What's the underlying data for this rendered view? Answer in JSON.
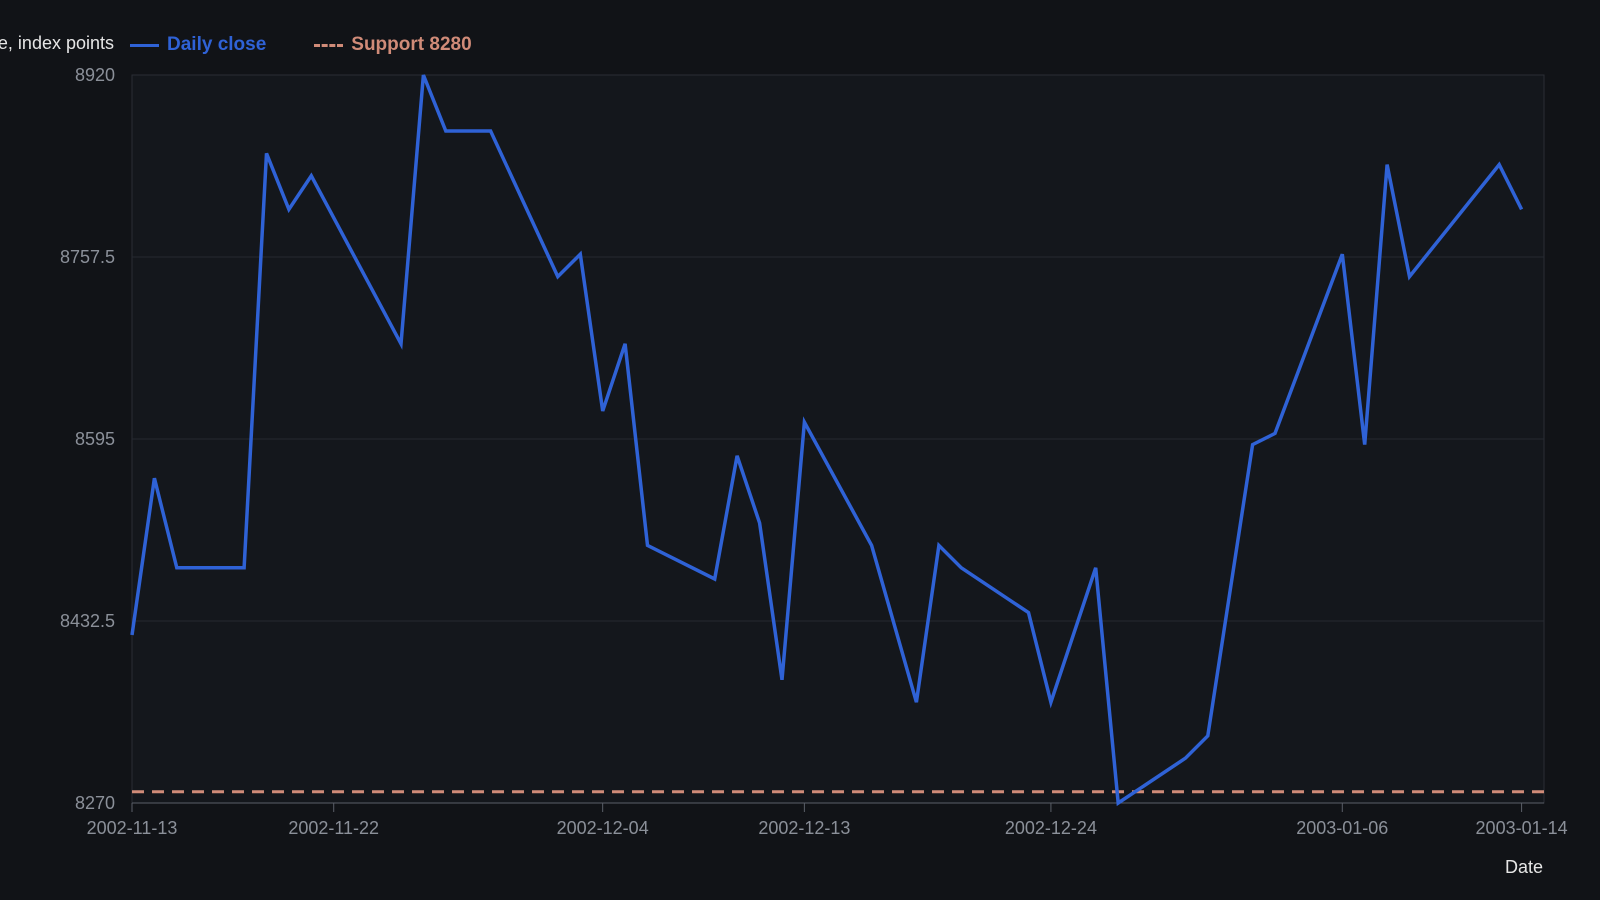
{
  "chart_data": {
    "type": "line",
    "xlabel": "Date",
    "ylabel": "Close, index points",
    "ylim": [
      8270,
      8920
    ],
    "xlim": [
      "2002-11-13",
      "2003-01-15"
    ],
    "y_ticks": [
      "8270",
      "8432.5",
      "8595",
      "8757.5",
      "8920"
    ],
    "x_ticks": [
      "2002-11-13",
      "2002-11-22",
      "2002-12-04",
      "2002-12-13",
      "2002-12-24",
      "2003-01-06",
      "2003-01-14"
    ],
    "grid": true,
    "legend_position": "top-left",
    "series": [
      {
        "name": "Daily close",
        "color": "#2f62d6",
        "style": "solid",
        "points": [
          {
            "x": "2002-11-13",
            "y": 8420
          },
          {
            "x": "2002-11-14",
            "y": 8560
          },
          {
            "x": "2002-11-15",
            "y": 8480
          },
          {
            "x": "2002-11-18",
            "y": 8480
          },
          {
            "x": "2002-11-19",
            "y": 8850
          },
          {
            "x": "2002-11-20",
            "y": 8800
          },
          {
            "x": "2002-11-21",
            "y": 8830
          },
          {
            "x": "2002-11-25",
            "y": 8680
          },
          {
            "x": "2002-11-26",
            "y": 8920
          },
          {
            "x": "2002-11-27",
            "y": 8870
          },
          {
            "x": "2002-11-29",
            "y": 8870
          },
          {
            "x": "2002-12-02",
            "y": 8740
          },
          {
            "x": "2002-12-03",
            "y": 8760
          },
          {
            "x": "2002-12-04",
            "y": 8620
          },
          {
            "x": "2002-12-05",
            "y": 8680
          },
          {
            "x": "2002-12-06",
            "y": 8500
          },
          {
            "x": "2002-12-09",
            "y": 8470
          },
          {
            "x": "2002-12-10",
            "y": 8580
          },
          {
            "x": "2002-12-11",
            "y": 8520
          },
          {
            "x": "2002-12-12",
            "y": 8380
          },
          {
            "x": "2002-12-13",
            "y": 8610
          },
          {
            "x": "2002-12-16",
            "y": 8500
          },
          {
            "x": "2002-12-18",
            "y": 8360
          },
          {
            "x": "2002-12-19",
            "y": 8500
          },
          {
            "x": "2002-12-20",
            "y": 8480
          },
          {
            "x": "2002-12-23",
            "y": 8440
          },
          {
            "x": "2002-12-24",
            "y": 8360
          },
          {
            "x": "2002-12-26",
            "y": 8480
          },
          {
            "x": "2002-12-27",
            "y": 8270
          },
          {
            "x": "2002-12-30",
            "y": 8310
          },
          {
            "x": "2002-12-31",
            "y": 8330
          },
          {
            "x": "2003-01-02",
            "y": 8590
          },
          {
            "x": "2003-01-03",
            "y": 8600
          },
          {
            "x": "2003-01-06",
            "y": 8760
          },
          {
            "x": "2003-01-07",
            "y": 8590
          },
          {
            "x": "2003-01-08",
            "y": 8840
          },
          {
            "x": "2003-01-09",
            "y": 8740
          },
          {
            "x": "2003-01-13",
            "y": 8840
          },
          {
            "x": "2003-01-14",
            "y": 8800
          }
        ]
      },
      {
        "name": "Support 8280",
        "color": "#d08b78",
        "style": "dashed",
        "y_constant": 8280
      }
    ]
  }
}
